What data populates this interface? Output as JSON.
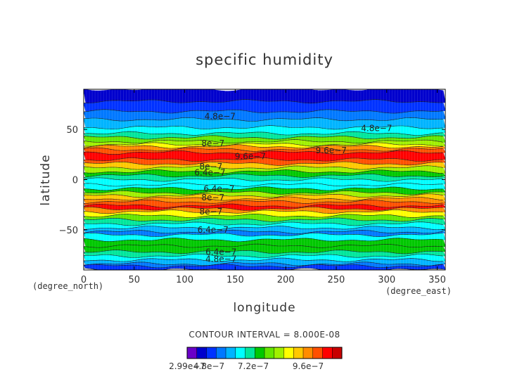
{
  "chart_data": {
    "type": "heatmap",
    "title": "specific humidity",
    "xlabel": "longitude",
    "ylabel": "latitude",
    "x_units": "(degree_east)",
    "y_units": "(degree_north)",
    "xlim": [
      0,
      358
    ],
    "ylim": [
      -90,
      90
    ],
    "x_ticks": [
      "0",
      "50",
      "100",
      "150",
      "200",
      "250",
      "300",
      "350"
    ],
    "y_ticks": [
      "50",
      "0",
      "−50"
    ],
    "contour_interval_text": "CONTOUR INTERVAL = 8.000E-08",
    "colorbar_labels": [
      "2.99e−7",
      "4.8e−7",
      "7.2e−7",
      "9.6e−7"
    ],
    "colorbar_colors": [
      "#6a00c8",
      "#0000cd",
      "#0032ff",
      "#0078ff",
      "#00b4ff",
      "#00ffff",
      "#00e69b",
      "#00c800",
      "#64e600",
      "#a0f000",
      "#ffff00",
      "#ffc800",
      "#ff8c00",
      "#ff5000",
      "#ff0000",
      "#c80000"
    ],
    "contour_labels": [
      {
        "text": "4.8e−7",
        "lon": 135,
        "lat": 63
      },
      {
        "text": "4.8e−7",
        "lon": 290,
        "lat": 51
      },
      {
        "text": "8e−7",
        "lon": 128,
        "lat": 36
      },
      {
        "text": "9.6e−7",
        "lon": 165,
        "lat": 23
      },
      {
        "text": "9.6e−7",
        "lon": 245,
        "lat": 29
      },
      {
        "text": "8e−7",
        "lon": 126,
        "lat": 13
      },
      {
        "text": "6.4e−7",
        "lon": 125,
        "lat": 7
      },
      {
        "text": "6.4e−7",
        "lon": 134,
        "lat": -9
      },
      {
        "text": "8e−7",
        "lon": 128,
        "lat": -18
      },
      {
        "text": "8e−7",
        "lon": 126,
        "lat": -32
      },
      {
        "text": "6.4e−7",
        "lon": 128,
        "lat": -50
      },
      {
        "text": "6.4e−7",
        "lon": 136,
        "lat": -72
      },
      {
        "text": "4.8e−7",
        "lon": 136,
        "lat": -79
      }
    ],
    "lat_profile": [
      {
        "lat": 90,
        "level": 1
      },
      {
        "lat": 78,
        "level": 2
      },
      {
        "lat": 68,
        "level": 3
      },
      {
        "lat": 60,
        "level": 4
      },
      {
        "lat": 52,
        "level": 5
      },
      {
        "lat": 46,
        "level": 6
      },
      {
        "lat": 42,
        "level": 8
      },
      {
        "lat": 38,
        "level": 9
      },
      {
        "lat": 35,
        "level": 10
      },
      {
        "lat": 33,
        "level": 12
      },
      {
        "lat": 30,
        "level": 13
      },
      {
        "lat": 27,
        "level": 14
      },
      {
        "lat": 20,
        "level": 13
      },
      {
        "lat": 16,
        "level": 11
      },
      {
        "lat": 12,
        "level": 9
      },
      {
        "lat": 8,
        "level": 7
      },
      {
        "lat": 4,
        "level": 6
      },
      {
        "lat": 0,
        "level": 5
      },
      {
        "lat": -5,
        "level": 5
      },
      {
        "lat": -9,
        "level": 7
      },
      {
        "lat": -13,
        "level": 9
      },
      {
        "lat": -16,
        "level": 11
      },
      {
        "lat": -19,
        "level": 12
      },
      {
        "lat": -22,
        "level": 13
      },
      {
        "lat": -26,
        "level": 14
      },
      {
        "lat": -29,
        "level": 12
      },
      {
        "lat": -32,
        "level": 10
      },
      {
        "lat": -36,
        "level": 8
      },
      {
        "lat": -40,
        "level": 6
      },
      {
        "lat": -44,
        "level": 5
      },
      {
        "lat": -48,
        "level": 4
      },
      {
        "lat": -52,
        "level": 3
      },
      {
        "lat": -55,
        "level": 5
      },
      {
        "lat": -60,
        "level": 7
      },
      {
        "lat": -66,
        "level": 7
      },
      {
        "lat": -72,
        "level": 6
      },
      {
        "lat": -76,
        "level": 5
      },
      {
        "lat": -80,
        "level": 4
      },
      {
        "lat": -84,
        "level": 3
      },
      {
        "lat": -86,
        "level": 2
      },
      {
        "lat": -90,
        "level": 1
      }
    ]
  }
}
